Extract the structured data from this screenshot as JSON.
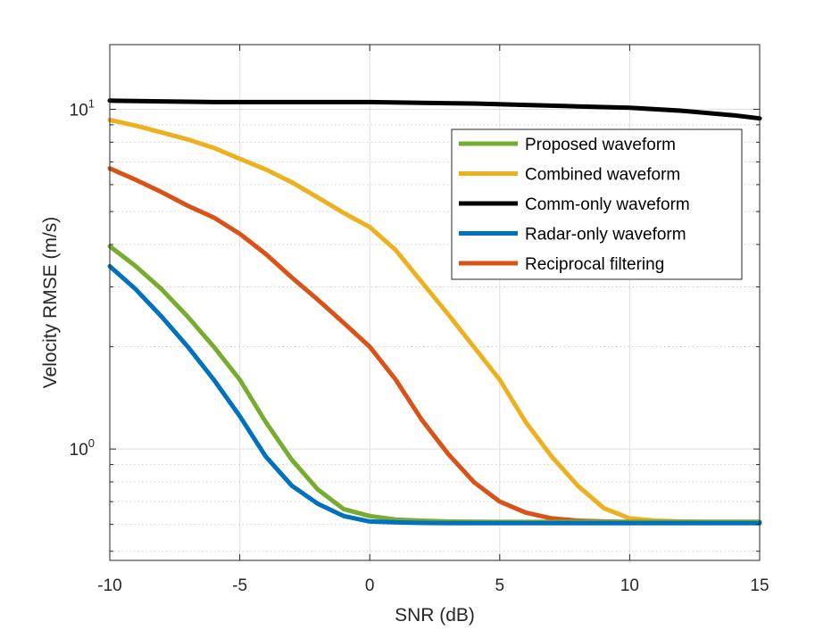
{
  "chart_data": {
    "type": "line",
    "xlabel": "SNR (dB)",
    "ylabel": "Velocity RMSE (m/s)",
    "xlim": [
      -10,
      15
    ],
    "ylim": [
      0.47,
      15.5
    ],
    "yscale": "log",
    "grid": true,
    "x_ticks": [
      "-10",
      "-5",
      "0",
      "5",
      "10",
      "15"
    ],
    "y_ticks": [
      {
        "base": "10",
        "exp": "0"
      },
      {
        "base": "10",
        "exp": "1"
      }
    ],
    "legend_position": "upper-right",
    "series": [
      {
        "name": "Proposed waveform",
        "color": "#77AC30",
        "x": [
          -10,
          -9,
          -8,
          -7,
          -6,
          -5,
          -4,
          -3,
          -2,
          -1,
          0,
          1,
          2,
          3,
          5,
          8,
          10,
          12,
          15
        ],
        "values": [
          3.95,
          3.45,
          2.95,
          2.45,
          2.0,
          1.6,
          1.2,
          0.93,
          0.76,
          0.665,
          0.635,
          0.62,
          0.615,
          0.612,
          0.61,
          0.61,
          0.61,
          0.61,
          0.61
        ]
      },
      {
        "name": "Combined waveform",
        "color": "#EDB120",
        "x": [
          -10,
          -9,
          -8,
          -7,
          -6,
          -5,
          -4,
          -3,
          -2,
          -1,
          0,
          1,
          2,
          3,
          4,
          5,
          6,
          7,
          8,
          9,
          10,
          11,
          12,
          13,
          14,
          15
        ],
        "values": [
          9.3,
          8.95,
          8.55,
          8.15,
          7.7,
          7.15,
          6.65,
          6.1,
          5.5,
          4.95,
          4.5,
          3.85,
          3.1,
          2.5,
          2.0,
          1.6,
          1.2,
          0.95,
          0.78,
          0.67,
          0.625,
          0.615,
          0.612,
          0.61,
          0.61,
          0.61
        ]
      },
      {
        "name": "Comm-only waveform",
        "color": "#000000",
        "x": [
          -10,
          -8,
          -6,
          -4,
          -2,
          0,
          2,
          4,
          6,
          8,
          10,
          12,
          14,
          15
        ],
        "values": [
          10.6,
          10.55,
          10.5,
          10.5,
          10.5,
          10.5,
          10.45,
          10.4,
          10.3,
          10.2,
          10.1,
          9.9,
          9.6,
          9.4
        ]
      },
      {
        "name": "Radar-only waveform",
        "color": "#0072BD",
        "x": [
          -10,
          -9,
          -8,
          -7,
          -6,
          -5,
          -4,
          -3,
          -2,
          -1,
          0,
          1,
          2,
          3,
          5,
          8,
          10,
          12,
          15
        ],
        "values": [
          3.45,
          2.95,
          2.45,
          2.0,
          1.6,
          1.25,
          0.95,
          0.78,
          0.69,
          0.635,
          0.612,
          0.608,
          0.606,
          0.605,
          0.605,
          0.605,
          0.605,
          0.605,
          0.605
        ]
      },
      {
        "name": "Reciprocal filtering",
        "color": "#D95319",
        "x": [
          -10,
          -9,
          -8,
          -7,
          -6,
          -5,
          -4,
          -3,
          -2,
          -1,
          0,
          1,
          2,
          3,
          4,
          5,
          6,
          7,
          8,
          9,
          10,
          12,
          15
        ],
        "values": [
          6.7,
          6.2,
          5.7,
          5.2,
          4.8,
          4.3,
          3.75,
          3.2,
          2.75,
          2.35,
          2.0,
          1.6,
          1.22,
          0.97,
          0.8,
          0.7,
          0.65,
          0.625,
          0.615,
          0.612,
          0.61,
          0.61,
          0.61
        ]
      }
    ]
  }
}
